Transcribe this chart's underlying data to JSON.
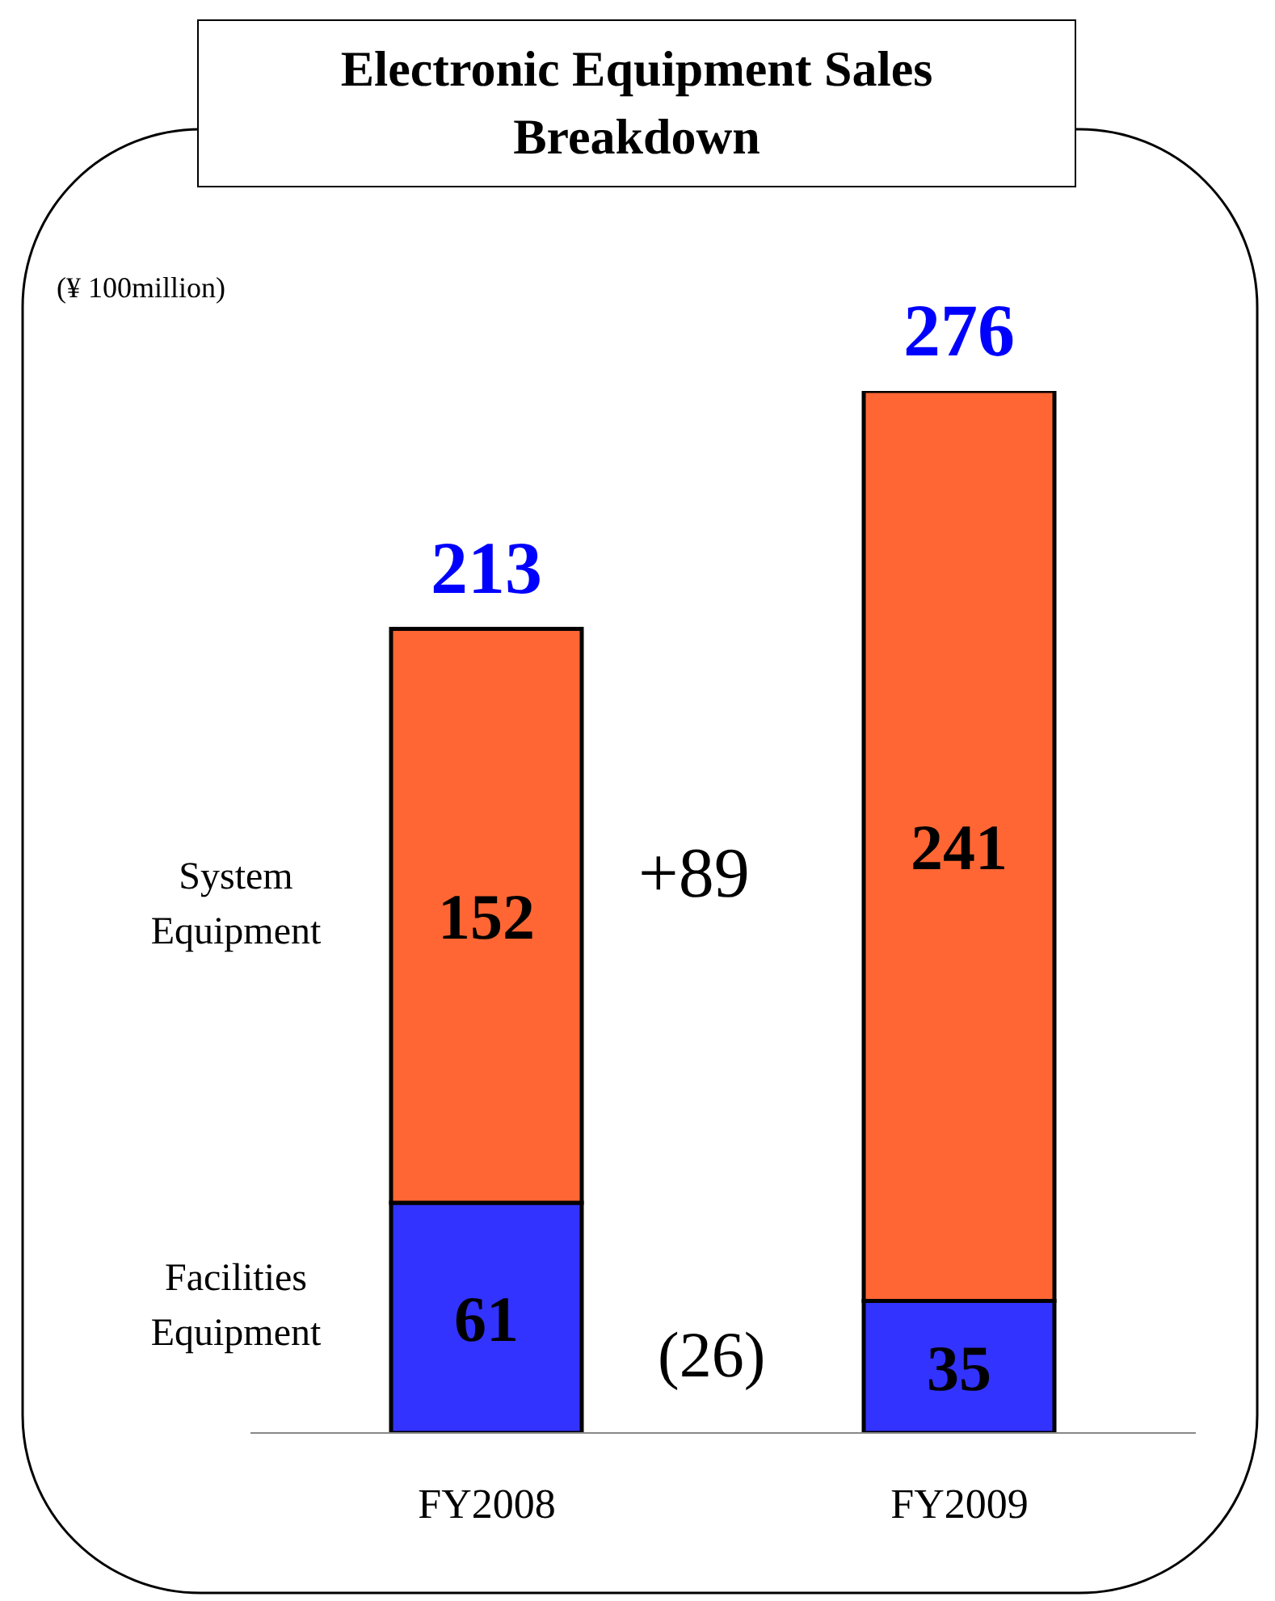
{
  "chart_data": {
    "type": "bar",
    "title": "Electronic Equipment Sales Breakdown",
    "categories": [
      "FY2008",
      "FY2009"
    ],
    "stacked": true,
    "data_labels": true,
    "tick_labels": "x",
    "totals": [
      "213",
      "276"
    ],
    "series": [
      {
        "name": "Facilities Equipment",
        "color": "#3333ff",
        "values": [
          61,
          35
        ]
      },
      {
        "name": "System Equipment",
        "color": "#ff6633",
        "values": [
          152,
          241
        ]
      }
    ],
    "annotations": [
      "(¥ 100million)",
      "+89",
      "(26)"
    ]
  }
}
